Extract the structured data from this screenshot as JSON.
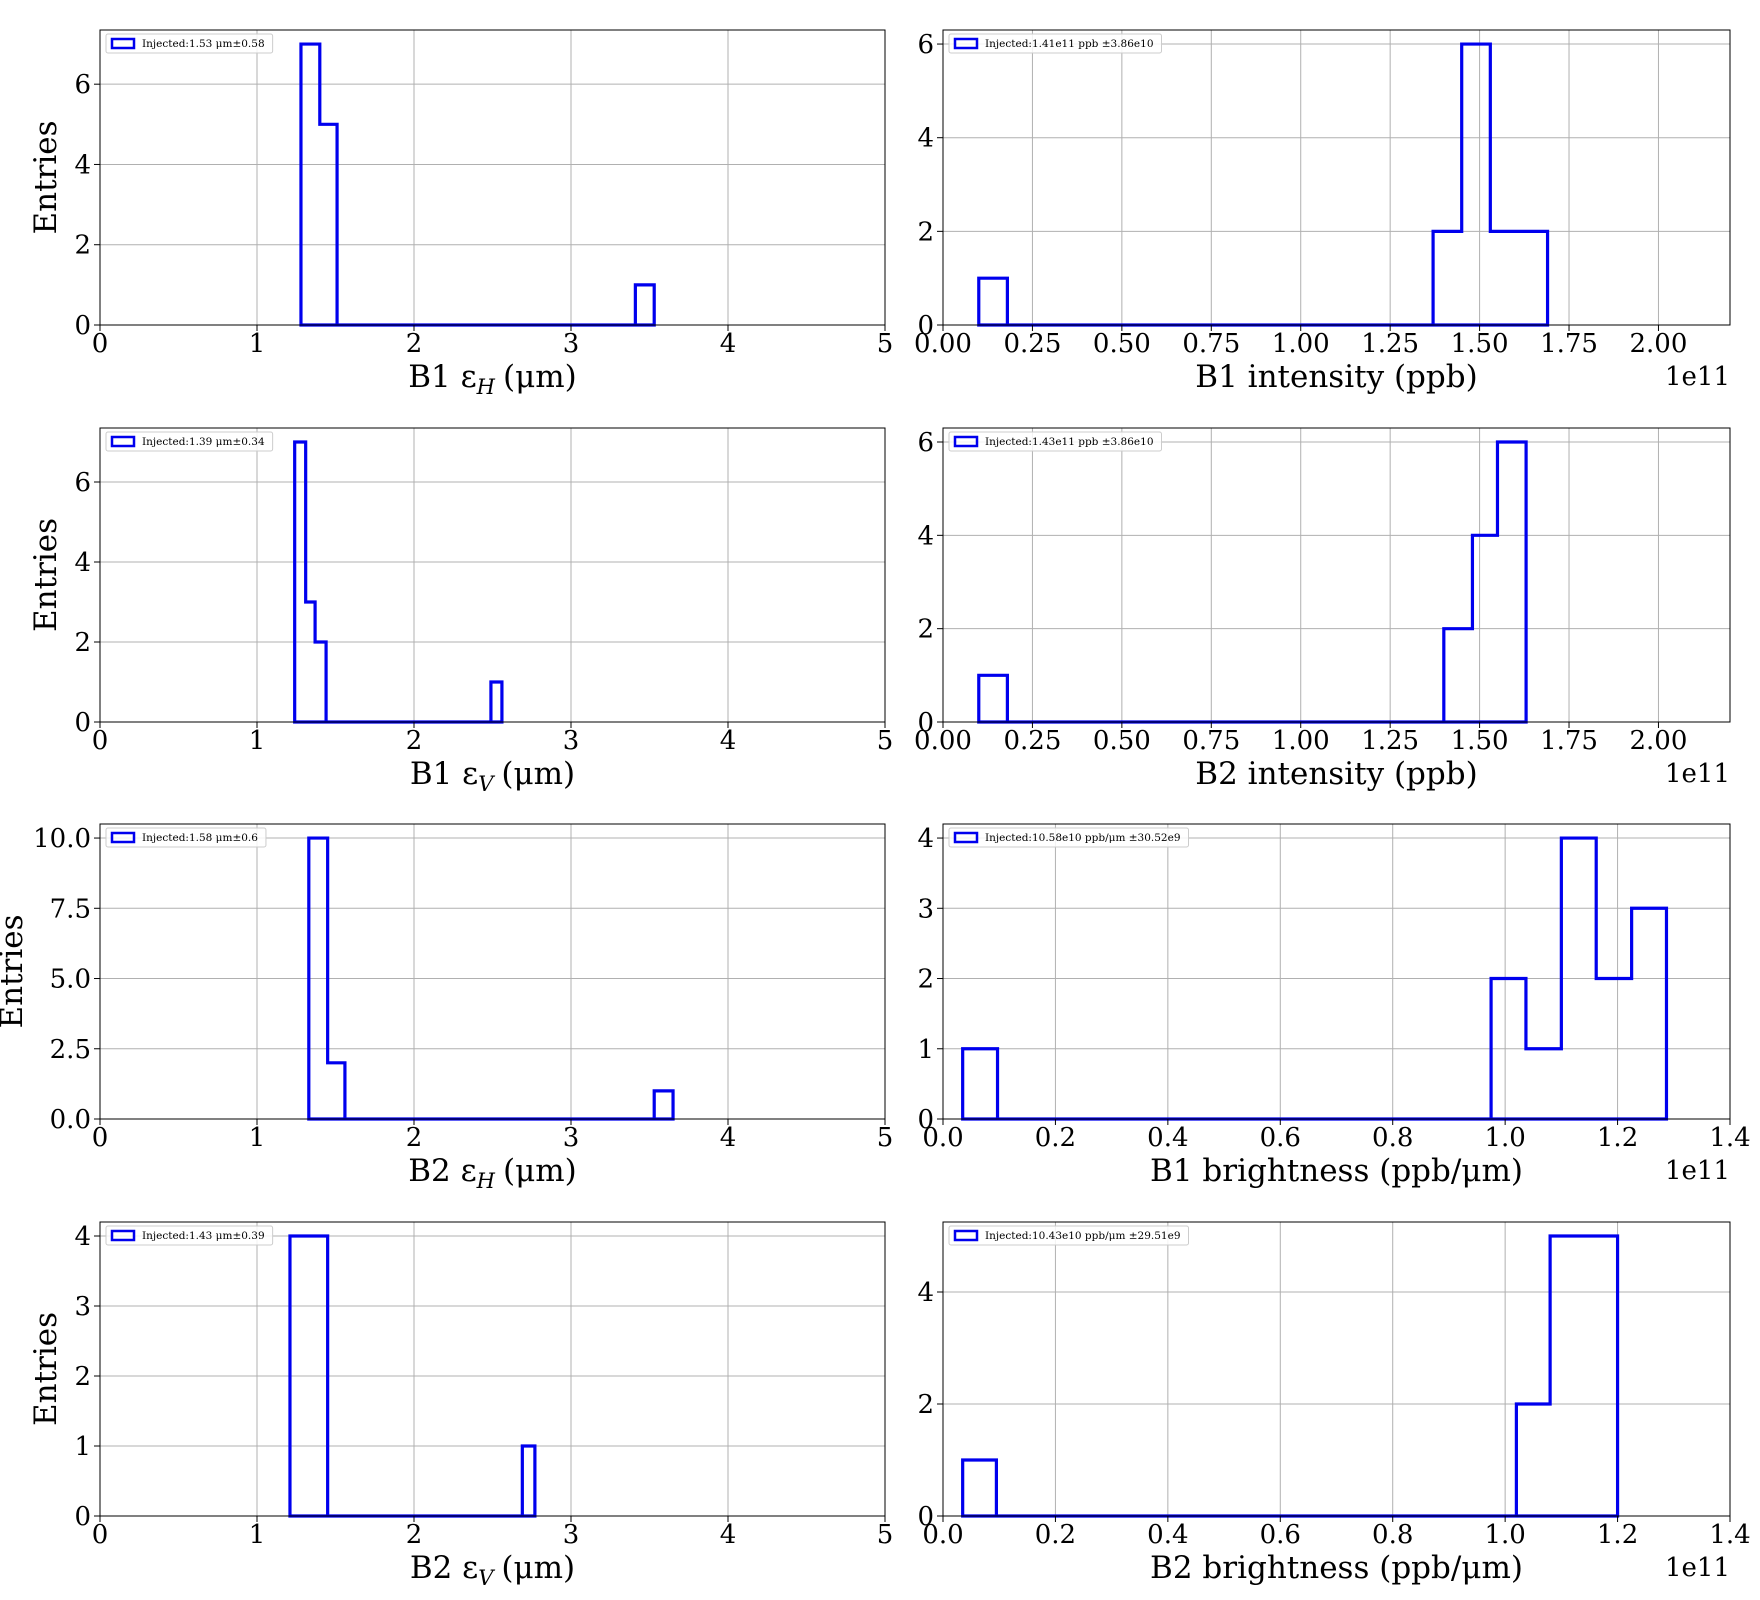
{
  "style": {
    "line_color": "#0000ee",
    "grid_color": "#b0b0b0",
    "background": "#ffffff"
  },
  "chart_data": [
    {
      "type": "histogram",
      "row": 0,
      "col": 0,
      "xlabel": "B1 ε",
      "xlabel_sub": "H",
      "xlabel_unit": "(μm)",
      "ylabel": "Entries",
      "xlim": [
        0,
        5
      ],
      "ylim": [
        0,
        7.35
      ],
      "xticks": [
        0,
        1,
        2,
        3,
        4,
        5
      ],
      "xtick_labels": [
        "0",
        "1",
        "2",
        "3",
        "4",
        "5"
      ],
      "yticks": [
        0,
        2,
        4,
        6
      ],
      "ytick_labels": [
        "0",
        "2",
        "4",
        "6"
      ],
      "offset_text": "",
      "legend_text": "Injected:1.53 μm±0.58",
      "legend_position": "top-left",
      "grid": true,
      "bin_edges": [
        1.28,
        1.4,
        1.51,
        3.41,
        3.53
      ],
      "counts": [
        7,
        5,
        0,
        1
      ]
    },
    {
      "type": "histogram",
      "row": 0,
      "col": 1,
      "xlabel": "B1 intensity (ppb)",
      "xlabel_sub": "",
      "xlabel_unit": "",
      "ylabel": "",
      "xlim": [
        0,
        2.2
      ],
      "ylim": [
        0,
        6.3
      ],
      "xticks": [
        0,
        0.25,
        0.5,
        0.75,
        1.0,
        1.25,
        1.5,
        1.75,
        2.0
      ],
      "xtick_labels": [
        "0.00",
        "0.25",
        "0.50",
        "0.75",
        "1.00",
        "1.25",
        "1.50",
        "1.75",
        "2.00"
      ],
      "yticks": [
        0,
        2,
        4,
        6
      ],
      "ytick_labels": [
        "0",
        "2",
        "4",
        "6"
      ],
      "offset_text": "1e11",
      "legend_text": "Injected:1.41e11 ppb ±3.86e10",
      "legend_position": "top-left",
      "grid": true,
      "bin_edges": [
        0.1,
        0.18,
        1.37,
        1.45,
        1.53,
        1.69
      ],
      "counts": [
        1,
        0,
        2,
        6,
        2
      ]
    },
    {
      "type": "histogram",
      "row": 1,
      "col": 0,
      "xlabel": "B1 ε",
      "xlabel_sub": "V",
      "xlabel_unit": "(μm)",
      "ylabel": "Entries",
      "xlim": [
        0,
        5
      ],
      "ylim": [
        0,
        7.35
      ],
      "xticks": [
        0,
        1,
        2,
        3,
        4,
        5
      ],
      "xtick_labels": [
        "0",
        "1",
        "2",
        "3",
        "4",
        "5"
      ],
      "yticks": [
        0,
        2,
        4,
        6
      ],
      "ytick_labels": [
        "0",
        "2",
        "4",
        "6"
      ],
      "offset_text": "",
      "legend_text": "Injected:1.39 μm±0.34",
      "legend_position": "top-left",
      "grid": true,
      "bin_edges": [
        1.24,
        1.31,
        1.37,
        1.44,
        2.49,
        2.56
      ],
      "counts": [
        7,
        3,
        2,
        0,
        1
      ]
    },
    {
      "type": "histogram",
      "row": 1,
      "col": 1,
      "xlabel": "B2 intensity (ppb)",
      "xlabel_sub": "",
      "xlabel_unit": "",
      "ylabel": "",
      "xlim": [
        0,
        2.2
      ],
      "ylim": [
        0,
        6.3
      ],
      "xticks": [
        0,
        0.25,
        0.5,
        0.75,
        1.0,
        1.25,
        1.5,
        1.75,
        2.0
      ],
      "xtick_labels": [
        "0.00",
        "0.25",
        "0.50",
        "0.75",
        "1.00",
        "1.25",
        "1.50",
        "1.75",
        "2.00"
      ],
      "yticks": [
        0,
        2,
        4,
        6
      ],
      "ytick_labels": [
        "0",
        "2",
        "4",
        "6"
      ],
      "offset_text": "1e11",
      "legend_text": "Injected:1.43e11 ppb ±3.86e10",
      "legend_position": "top-left",
      "grid": true,
      "bin_edges": [
        0.1,
        0.18,
        1.4,
        1.48,
        1.55,
        1.63
      ],
      "counts": [
        1,
        0,
        2,
        4,
        6
      ]
    },
    {
      "type": "histogram",
      "row": 2,
      "col": 0,
      "xlabel": "B2 ε",
      "xlabel_sub": "H",
      "xlabel_unit": "(μm)",
      "ylabel": "Entries",
      "xlim": [
        0,
        5
      ],
      "ylim": [
        0,
        10.5
      ],
      "xticks": [
        0,
        1,
        2,
        3,
        4,
        5
      ],
      "xtick_labels": [
        "0",
        "1",
        "2",
        "3",
        "4",
        "5"
      ],
      "yticks": [
        0,
        2.5,
        5.0,
        7.5,
        10.0
      ],
      "ytick_labels": [
        "0.0",
        "2.5",
        "5.0",
        "7.5",
        "10.0"
      ],
      "offset_text": "",
      "legend_text": "Injected:1.58 μm±0.6",
      "legend_position": "top-left",
      "grid": true,
      "bin_edges": [
        1.33,
        1.45,
        1.56,
        3.53,
        3.65
      ],
      "counts": [
        10,
        2,
        0,
        1
      ]
    },
    {
      "type": "histogram",
      "row": 2,
      "col": 1,
      "xlabel": "B1 brightness (ppb/",
      "xlabel_sub": "",
      "xlabel_unit": "μm)",
      "ylabel": "",
      "xlim": [
        0,
        1.4
      ],
      "ylim": [
        0,
        4.2
      ],
      "xticks": [
        0,
        0.2,
        0.4,
        0.6,
        0.8,
        1.0,
        1.2,
        1.4
      ],
      "xtick_labels": [
        "0.0",
        "0.2",
        "0.4",
        "0.6",
        "0.8",
        "1.0",
        "1.2",
        "1.4"
      ],
      "yticks": [
        0,
        1,
        2,
        3,
        4
      ],
      "ytick_labels": [
        "0",
        "1",
        "2",
        "3",
        "4"
      ],
      "offset_text": "1e11",
      "legend_text": "Injected:10.58e10 ppb/μm ±30.52e9",
      "legend_position": "top-left",
      "grid": true,
      "bin_edges": [
        0.035,
        0.097,
        0.975,
        1.037,
        1.1,
        1.162,
        1.225,
        1.287
      ],
      "counts": [
        1,
        0,
        2,
        1,
        4,
        2,
        3
      ]
    },
    {
      "type": "histogram",
      "row": 3,
      "col": 0,
      "xlabel": "B2 ε",
      "xlabel_sub": "V",
      "xlabel_unit": "(μm)",
      "ylabel": "Entries",
      "xlim": [
        0,
        5
      ],
      "ylim": [
        0,
        4.2
      ],
      "xticks": [
        0,
        1,
        2,
        3,
        4,
        5
      ],
      "xtick_labels": [
        "0",
        "1",
        "2",
        "3",
        "4",
        "5"
      ],
      "yticks": [
        0,
        1,
        2,
        3,
        4
      ],
      "ytick_labels": [
        "0",
        "1",
        "2",
        "3",
        "4"
      ],
      "offset_text": "",
      "legend_text": "Injected:1.43 μm±0.39",
      "legend_position": "top-left",
      "grid": true,
      "bin_edges": [
        1.21,
        1.45,
        2.69,
        2.77
      ],
      "counts": [
        4,
        0,
        1
      ]
    },
    {
      "type": "histogram",
      "row": 3,
      "col": 1,
      "xlabel": "B2 brightness (ppb/",
      "xlabel_sub": "",
      "xlabel_unit": "μm)",
      "ylabel": "",
      "xlim": [
        0,
        1.4
      ],
      "ylim": [
        0,
        5.25
      ],
      "xticks": [
        0,
        0.2,
        0.4,
        0.6,
        0.8,
        1.0,
        1.2,
        1.4
      ],
      "xtick_labels": [
        "0.0",
        "0.2",
        "0.4",
        "0.6",
        "0.8",
        "1.0",
        "1.2",
        "1.4"
      ],
      "yticks": [
        0,
        2,
        4
      ],
      "ytick_labels": [
        "0",
        "2",
        "4"
      ],
      "offset_text": "1e11",
      "legend_text": "Injected:10.43e10 ppb/μm ±29.51e9",
      "legend_position": "top-left",
      "grid": true,
      "bin_edges": [
        0.035,
        0.095,
        1.02,
        1.08,
        1.2
      ],
      "counts": [
        1,
        0,
        2,
        5
      ]
    }
  ]
}
